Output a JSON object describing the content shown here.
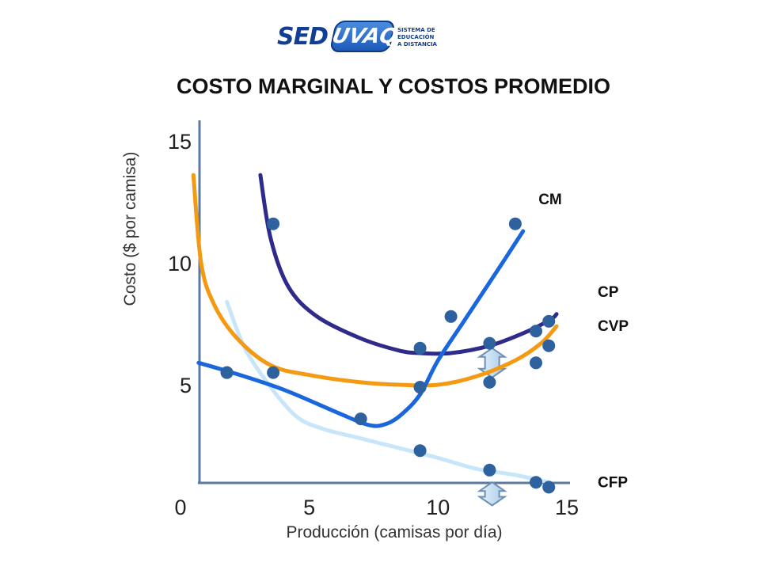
{
  "logo": {
    "main_text": "SED",
    "badge_text": "UVAQ",
    "sub_lines": [
      "SISTEMA DE",
      "EDUCACIÓN",
      "A DISTANCIA"
    ]
  },
  "chart_data": {
    "type": "line",
    "title": "COSTO MARGINAL Y COSTOS PROMEDIO",
    "xlabel": "Producción (camisas por día)",
    "ylabel": "Costo ($ por camisa)",
    "xlim": [
      0,
      15
    ],
    "ylim": [
      0,
      15
    ],
    "x_ticks": [
      "0",
      "5",
      "10",
      "15"
    ],
    "y_ticks": [
      "5",
      "10",
      "15"
    ],
    "grid": false,
    "series": [
      {
        "name": "CM",
        "color": "#1a66dd",
        "points": [
          [
            0.7,
            5.9
          ],
          [
            2,
            5.5
          ],
          [
            4,
            4.8
          ],
          [
            6,
            3.9
          ],
          [
            7.3,
            3.35
          ],
          [
            8,
            3.4
          ],
          [
            8.6,
            3.8
          ],
          [
            9.3,
            4.6
          ],
          [
            10,
            6
          ],
          [
            11,
            7.6
          ],
          [
            12.5,
            10
          ],
          [
            13.3,
            11.3
          ]
        ],
        "markers": [
          [
            1.8,
            5.5
          ],
          [
            7,
            3.6
          ],
          [
            9.3,
            4.9
          ],
          [
            10.5,
            7.8
          ],
          [
            13,
            11.6
          ]
        ]
      },
      {
        "name": "CP",
        "color": "#2e2b8b",
        "points": [
          [
            3.1,
            13.6
          ],
          [
            3.5,
            11.0
          ],
          [
            4.2,
            9.0
          ],
          [
            5.3,
            7.8
          ],
          [
            7,
            6.9
          ],
          [
            8.5,
            6.4
          ],
          [
            9.3,
            6.3
          ],
          [
            10.5,
            6.3
          ],
          [
            12,
            6.6
          ],
          [
            13.5,
            7.2
          ],
          [
            14.4,
            7.7
          ],
          [
            14.6,
            7.9
          ]
        ],
        "markers": [
          [
            3.6,
            11.6
          ],
          [
            9.3,
            6.5
          ],
          [
            12,
            6.7
          ],
          [
            13.8,
            7.2
          ],
          [
            14.3,
            7.6
          ]
        ]
      },
      {
        "name": "CVP",
        "color": "#f39a12",
        "points": [
          [
            0.5,
            13.6
          ],
          [
            0.8,
            10.0
          ],
          [
            1.3,
            8.3
          ],
          [
            2.2,
            6.9
          ],
          [
            3.5,
            5.8
          ],
          [
            5,
            5.4
          ],
          [
            7,
            5.1
          ],
          [
            8.5,
            5.0
          ],
          [
            10,
            5.0
          ],
          [
            11.5,
            5.35
          ],
          [
            13,
            6.0
          ],
          [
            14,
            6.7
          ],
          [
            14.6,
            7.4
          ]
        ],
        "markers": [
          [
            1.8,
            5.5
          ],
          [
            3.6,
            5.5
          ],
          [
            9.3,
            4.9
          ],
          [
            12,
            5.1
          ],
          [
            13.8,
            5.9
          ],
          [
            14.3,
            6.6
          ]
        ]
      },
      {
        "name": "CFP",
        "color": "#c8e6f9",
        "points": [
          [
            1.8,
            8.4
          ],
          [
            2.5,
            6.5
          ],
          [
            3.5,
            4.9
          ],
          [
            4.5,
            3.7
          ],
          [
            5.5,
            3.2
          ],
          [
            7,
            2.8
          ],
          [
            8.5,
            2.4
          ],
          [
            10,
            2.0
          ],
          [
            11.5,
            1.55
          ],
          [
            13,
            1.3
          ],
          [
            14.3,
            1.0
          ]
        ],
        "markers": [
          [
            9.3,
            2.3
          ],
          [
            12,
            1.5
          ],
          [
            13.8,
            1.0
          ],
          [
            14.3,
            0.8
          ]
        ]
      }
    ],
    "marker_color": "#2e629f",
    "annotations": [
      {
        "type": "double-arrow",
        "x": 12.1,
        "y_from": 5.3,
        "y_to": 6.5,
        "color": "#b6d4ec"
      },
      {
        "type": "double-arrow",
        "x": 12.1,
        "y_from": 0.05,
        "y_to": 1.0,
        "color": "#b6d4ec"
      }
    ]
  }
}
